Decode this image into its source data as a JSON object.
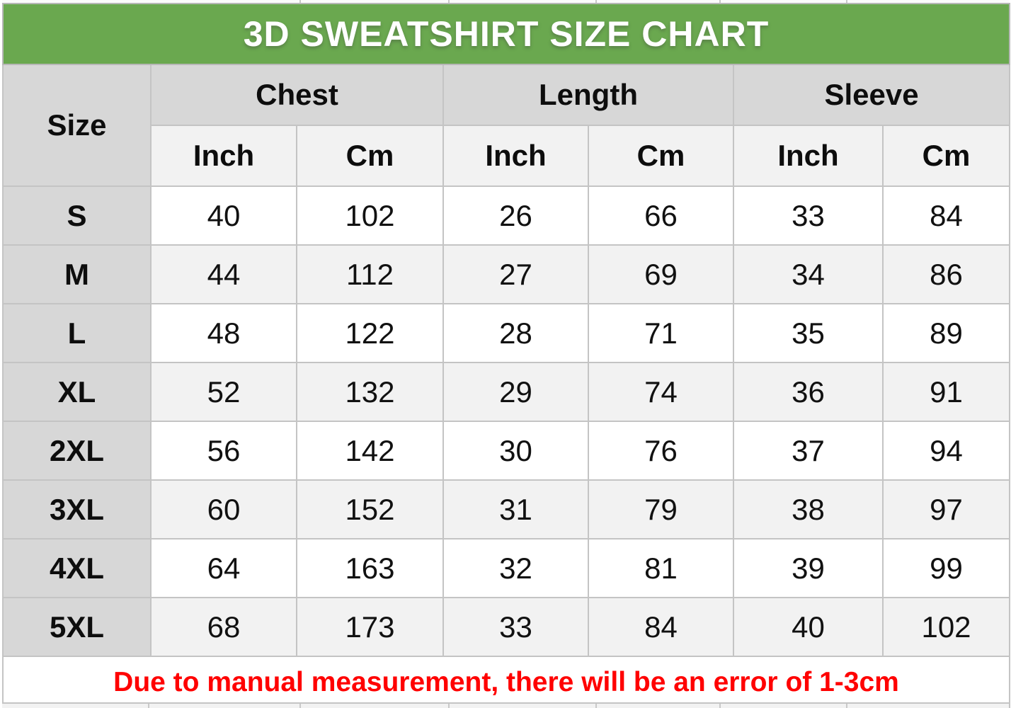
{
  "title": "3D SWEATSHIRT SIZE CHART",
  "table": {
    "size_column_header": "Size",
    "groups": [
      {
        "label": "Chest"
      },
      {
        "label": "Length"
      },
      {
        "label": "Sleeve"
      }
    ],
    "unit_headers": [
      "Inch",
      "Cm",
      "Inch",
      "Cm",
      "Inch",
      "Cm"
    ],
    "rows": [
      {
        "size": "S",
        "values": [
          "40",
          "102",
          "26",
          "66",
          "33",
          "84"
        ]
      },
      {
        "size": "M",
        "values": [
          "44",
          "112",
          "27",
          "69",
          "34",
          "86"
        ]
      },
      {
        "size": "L",
        "values": [
          "48",
          "122",
          "28",
          "71",
          "35",
          "89"
        ]
      },
      {
        "size": "XL",
        "values": [
          "52",
          "132",
          "29",
          "74",
          "36",
          "91"
        ]
      },
      {
        "size": "2XL",
        "values": [
          "56",
          "142",
          "30",
          "76",
          "37",
          "94"
        ]
      },
      {
        "size": "3XL",
        "values": [
          "60",
          "152",
          "31",
          "79",
          "38",
          "97"
        ]
      },
      {
        "size": "4XL",
        "values": [
          "64",
          "163",
          "32",
          "81",
          "39",
          "99"
        ]
      },
      {
        "size": "5XL",
        "values": [
          "68",
          "173",
          "33",
          "84",
          "40",
          "102"
        ]
      }
    ]
  },
  "footer": {
    "note": "Due to manual measurement, there will be an error of 1-3cm"
  },
  "colors": {
    "title_bg": "#6aa84f",
    "title_text": "#ffffff",
    "group_header_bg": "#d7d7d7",
    "subheader_bg": "#f2f2f2",
    "size_column_bg": "#d7d7d7",
    "row_bg": "#ffffff",
    "row_alt_bg": "#f2f2f2",
    "note_text": "#ff0000",
    "border": "#c4c4c4"
  },
  "chart_data": {
    "type": "table",
    "title": "3D SWEATSHIRT SIZE CHART",
    "columns": [
      "Size",
      "Chest Inch",
      "Chest Cm",
      "Length Inch",
      "Length Cm",
      "Sleeve Inch",
      "Sleeve Cm"
    ],
    "rows": [
      [
        "S",
        40,
        102,
        26,
        66,
        33,
        84
      ],
      [
        "M",
        44,
        112,
        27,
        69,
        34,
        86
      ],
      [
        "L",
        48,
        122,
        28,
        71,
        35,
        89
      ],
      [
        "XL",
        52,
        132,
        29,
        74,
        36,
        91
      ],
      [
        "2XL",
        56,
        142,
        30,
        76,
        37,
        94
      ],
      [
        "3XL",
        60,
        152,
        31,
        79,
        38,
        97
      ],
      [
        "4XL",
        64,
        163,
        32,
        81,
        39,
        99
      ],
      [
        "5XL",
        68,
        173,
        33,
        84,
        40,
        102
      ]
    ],
    "note": "Due to manual measurement, there will be an error of 1-3cm",
    "layout": "size column + 3 measurement groups each split into Inch/Cm; alternating row shading"
  }
}
